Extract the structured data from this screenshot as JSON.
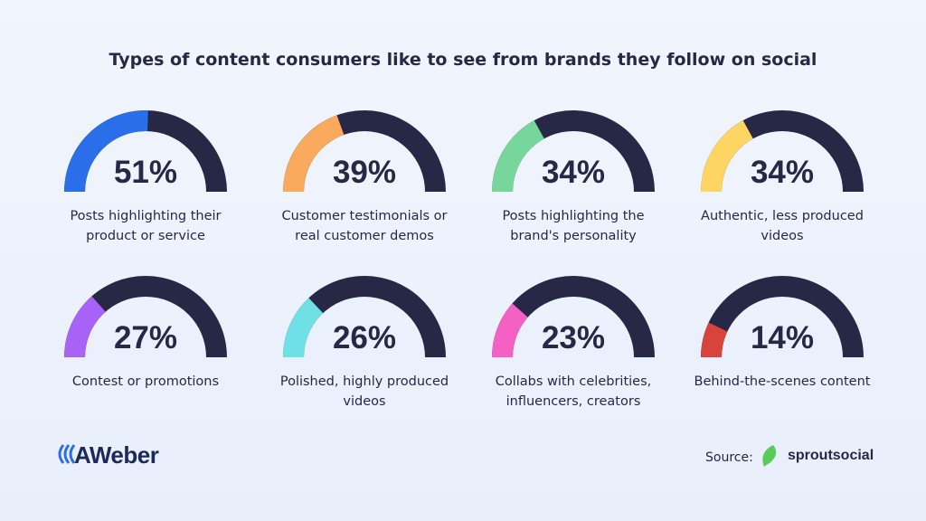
{
  "title": "Types of content consumers like to see from brands they follow on social",
  "chart_data": [
    {
      "type": "gauge",
      "categories": [
        "Posts highlighting their product or service"
      ],
      "values": [
        51
      ],
      "value_labels": [
        "51%"
      ],
      "color": "#2b6ee9",
      "ylim": [
        0,
        100
      ]
    },
    {
      "type": "gauge",
      "categories": [
        "Customer testimonials or real customer demos"
      ],
      "values": [
        39
      ],
      "value_labels": [
        "39%"
      ],
      "color": "#f9aa5c",
      "ylim": [
        0,
        100
      ]
    },
    {
      "type": "gauge",
      "categories": [
        "Posts highlighting the brand's personality"
      ],
      "values": [
        34
      ],
      "value_labels": [
        "34%"
      ],
      "color": "#76d69b",
      "ylim": [
        0,
        100
      ]
    },
    {
      "type": "gauge",
      "categories": [
        "Authentic, less produced videos"
      ],
      "values": [
        34
      ],
      "value_labels": [
        "34%"
      ],
      "color": "#fdd563",
      "ylim": [
        0,
        100
      ]
    },
    {
      "type": "gauge",
      "categories": [
        "Contest or promotions"
      ],
      "values": [
        27
      ],
      "value_labels": [
        "27%"
      ],
      "color": "#a862f6",
      "ylim": [
        0,
        100
      ]
    },
    {
      "type": "gauge",
      "categories": [
        "Polished, highly produced videos"
      ],
      "values": [
        26
      ],
      "value_labels": [
        "26%"
      ],
      "color": "#6fe0e6",
      "ylim": [
        0,
        100
      ]
    },
    {
      "type": "gauge",
      "categories": [
        "Collabs with celebrities, influencers, creators"
      ],
      "values": [
        23
      ],
      "value_labels": [
        "23%"
      ],
      "color": "#f560c4",
      "ylim": [
        0,
        100
      ]
    },
    {
      "type": "gauge",
      "categories": [
        "Behind-the-scenes content"
      ],
      "values": [
        14
      ],
      "value_labels": [
        "14%"
      ],
      "color": "#d8443c",
      "ylim": [
        0,
        100
      ]
    }
  ],
  "footer": {
    "logo": "AWeber",
    "source_label": "Source:",
    "source_brand": "sproutsocial"
  }
}
